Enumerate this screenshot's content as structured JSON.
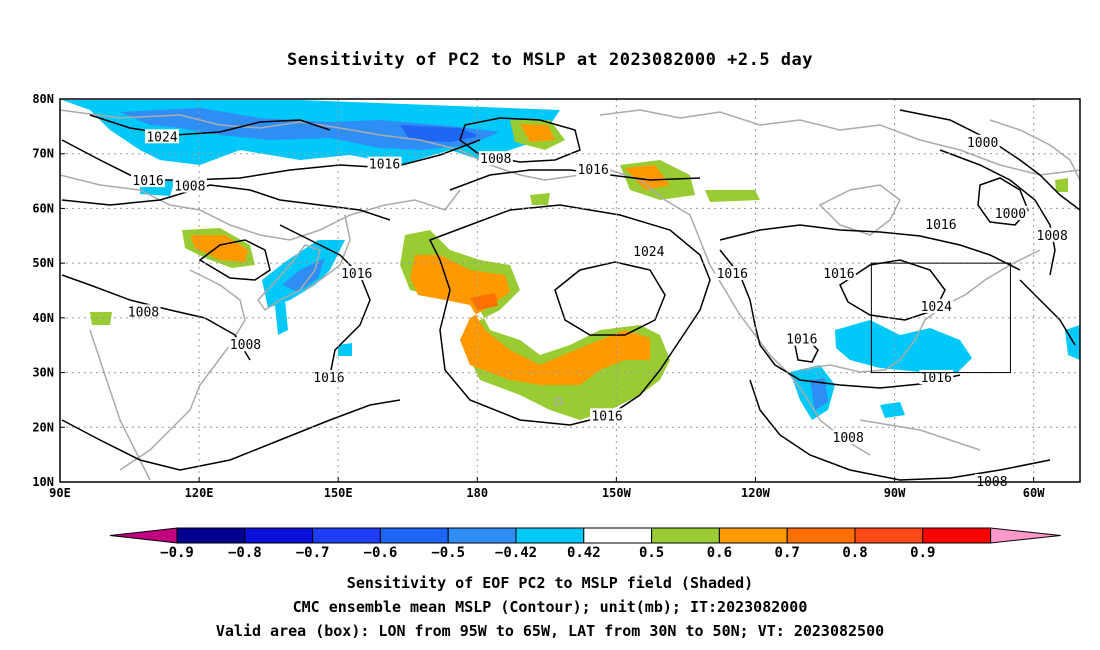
{
  "title": "Sensitivity of PC2 to MSLP at 2023082000 +2.5 day",
  "map": {
    "lat_labels": [
      "80N",
      "70N",
      "60N",
      "50N",
      "40N",
      "30N",
      "20N",
      "10N"
    ],
    "lon_labels": [
      "90E",
      "120E",
      "150E",
      "180",
      "150W",
      "120W",
      "90W",
      "60W"
    ],
    "lon_range": [
      "90E",
      "50W"
    ],
    "lat_range": [
      "10N",
      "80N"
    ],
    "grid": "dotted",
    "valid_box": {
      "lon": [
        "95W",
        "65W"
      ],
      "lat": [
        "30N",
        "50N"
      ]
    },
    "contour_labels": [
      {
        "text": "1024",
        "lon": 112,
        "lat": 73
      },
      {
        "text": "1016",
        "lon": 109,
        "lat": 65
      },
      {
        "text": "1008",
        "lon": 118,
        "lat": 64
      },
      {
        "text": "1016",
        "lon": 160,
        "lat": 68
      },
      {
        "text": "1008",
        "lon": 184,
        "lat": 69
      },
      {
        "text": "1016",
        "lon": 205,
        "lat": 67
      },
      {
        "text": "1000",
        "lon": 289,
        "lat": 72
      },
      {
        "text": "1000",
        "lon": 295,
        "lat": 59
      },
      {
        "text": "1008",
        "lon": 304,
        "lat": 55
      },
      {
        "text": "1016",
        "lon": 280,
        "lat": 57
      },
      {
        "text": "1016",
        "lon": 258,
        "lat": 48
      },
      {
        "text": "1024",
        "lon": 217,
        "lat": 52
      },
      {
        "text": "1016",
        "lon": 235,
        "lat": 48
      },
      {
        "text": "1024",
        "lon": 279,
        "lat": 42
      },
      {
        "text": "1016",
        "lon": 250,
        "lat": 36
      },
      {
        "text": "1016",
        "lon": 154,
        "lat": 48
      },
      {
        "text": "1008",
        "lon": 108,
        "lat": 41
      },
      {
        "text": "1008",
        "lon": 130,
        "lat": 35
      },
      {
        "text": "1016",
        "lon": 148,
        "lat": 29
      },
      {
        "text": "1016",
        "lon": 208,
        "lat": 22
      },
      {
        "text": "1016",
        "lon": 279,
        "lat": 29
      },
      {
        "text": "1008",
        "lon": 260,
        "lat": 18
      },
      {
        "text": "1008",
        "lon": 291,
        "lat": 10
      }
    ]
  },
  "colorbar": {
    "labels": [
      "−0.9",
      "−0.8",
      "−0.7",
      "−0.6",
      "−0.5",
      "−0.42",
      "0.42",
      "0.5",
      "0.6",
      "0.7",
      "0.8",
      "0.9"
    ],
    "colors": {
      "under": "#c0007f",
      "m09": "#00008f",
      "m08": "#0b10d8",
      "m07": "#1d3ef6",
      "m06": "#1e66f5",
      "m05": "#2f8ef6",
      "m042": "#00c8f8",
      "zero": "#ffffff",
      "p042": "#99cc33",
      "p05": "#ff9900",
      "p06": "#ff7000",
      "p07": "#ff4a18",
      "p08": "#ff0000",
      "over": "#ff99cc"
    }
  },
  "captions": [
    "Sensitivity of EOF PC2 to MSLP field (Shaded)",
    "CMC ensemble mean MSLP (Contour); unit(mb); IT:2023082000",
    "Valid area (box): LON from 95W to 65W, LAT from 30N to 50N; VT: 2023082500"
  ]
}
